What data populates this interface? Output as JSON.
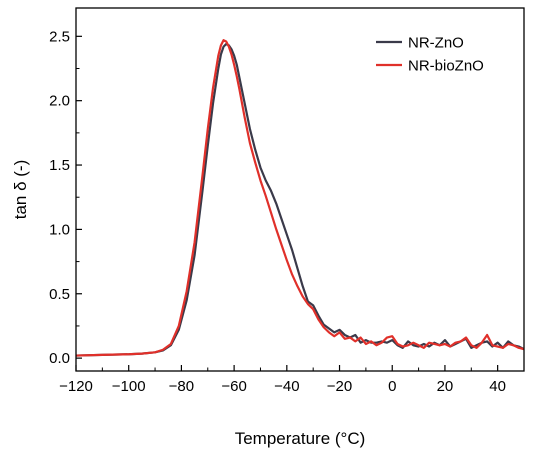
{
  "chart_data": {
    "type": "line",
    "title": "",
    "xlabel": "Temperature (°C)",
    "ylabel": "tan δ (-)",
    "xlim": [
      -120,
      50
    ],
    "ylim": [
      -0.1,
      2.72
    ],
    "xticks": [
      -120,
      -100,
      -80,
      -60,
      -40,
      -20,
      0,
      20,
      40
    ],
    "xtick_labels": [
      "−120",
      "−100",
      "−80",
      "−60",
      "−40",
      "−20",
      "0",
      "20",
      "40"
    ],
    "yticks": [
      0.0,
      0.5,
      1.0,
      1.5,
      2.0,
      2.5
    ],
    "ytick_labels": [
      "0.0",
      "0.5",
      "1.0",
      "1.5",
      "2.0",
      "2.5"
    ],
    "grid": false,
    "legend_position": "top-right",
    "series": [
      {
        "name": "NR-ZnO",
        "color": "#3a3a4a",
        "x": [
          -120,
          -110,
          -100,
          -95,
          -90,
          -87,
          -84,
          -81,
          -78,
          -75,
          -72,
          -70,
          -68,
          -66,
          -65,
          -64,
          -63,
          -62,
          -61,
          -60,
          -59,
          -58,
          -57,
          -56,
          -55,
          -54,
          -52,
          -50,
          -48,
          -46,
          -44,
          -42,
          -40,
          -38,
          -36,
          -34,
          -32,
          -30,
          -28,
          -26,
          -24,
          -22,
          -20,
          -18,
          -16,
          -14,
          -12,
          -10,
          -8,
          -6,
          -4,
          -2,
          0,
          2,
          4,
          6,
          8,
          10,
          12,
          14,
          16,
          18,
          20,
          22,
          24,
          26,
          28,
          30,
          32,
          34,
          36,
          38,
          40,
          42,
          44,
          46,
          48,
          50
        ],
        "y": [
          0.02,
          0.025,
          0.03,
          0.035,
          0.045,
          0.06,
          0.1,
          0.22,
          0.45,
          0.8,
          1.3,
          1.65,
          1.98,
          2.25,
          2.36,
          2.42,
          2.44,
          2.43,
          2.4,
          2.35,
          2.28,
          2.18,
          2.08,
          1.98,
          1.88,
          1.78,
          1.62,
          1.48,
          1.38,
          1.3,
          1.2,
          1.08,
          0.96,
          0.84,
          0.7,
          0.56,
          0.44,
          0.41,
          0.33,
          0.26,
          0.23,
          0.2,
          0.22,
          0.18,
          0.16,
          0.18,
          0.12,
          0.14,
          0.12,
          0.12,
          0.13,
          0.12,
          0.14,
          0.1,
          0.08,
          0.13,
          0.1,
          0.09,
          0.11,
          0.09,
          0.12,
          0.1,
          0.14,
          0.09,
          0.11,
          0.13,
          0.15,
          0.08,
          0.1,
          0.12,
          0.13,
          0.09,
          0.12,
          0.08,
          0.13,
          0.1,
          0.09,
          0.07
        ]
      },
      {
        "name": "NR-bioZnO",
        "color": "#e0302a",
        "x": [
          -120,
          -110,
          -100,
          -95,
          -90,
          -87,
          -84,
          -81,
          -78,
          -75,
          -72,
          -70,
          -68,
          -66,
          -65,
          -64,
          -63,
          -62,
          -61,
          -60,
          -59,
          -58,
          -57,
          -56,
          -55,
          -54,
          -52,
          -50,
          -48,
          -46,
          -44,
          -42,
          -40,
          -38,
          -36,
          -34,
          -32,
          -30,
          -28,
          -26,
          -24,
          -22,
          -20,
          -18,
          -16,
          -14,
          -12,
          -10,
          -8,
          -6,
          -4,
          -2,
          0,
          2,
          4,
          6,
          8,
          10,
          12,
          14,
          16,
          18,
          20,
          22,
          24,
          26,
          28,
          30,
          32,
          34,
          36,
          38,
          40,
          42,
          44,
          46,
          48,
          50
        ],
        "y": [
          0.02,
          0.025,
          0.03,
          0.035,
          0.045,
          0.065,
          0.11,
          0.25,
          0.52,
          0.9,
          1.42,
          1.78,
          2.1,
          2.35,
          2.43,
          2.47,
          2.46,
          2.42,
          2.36,
          2.28,
          2.19,
          2.09,
          1.98,
          1.87,
          1.77,
          1.67,
          1.52,
          1.38,
          1.26,
          1.13,
          1.0,
          0.88,
          0.76,
          0.65,
          0.56,
          0.48,
          0.42,
          0.38,
          0.3,
          0.24,
          0.2,
          0.17,
          0.2,
          0.15,
          0.16,
          0.13,
          0.16,
          0.11,
          0.13,
          0.1,
          0.12,
          0.16,
          0.17,
          0.11,
          0.09,
          0.1,
          0.12,
          0.1,
          0.08,
          0.12,
          0.11,
          0.1,
          0.11,
          0.09,
          0.12,
          0.13,
          0.16,
          0.1,
          0.08,
          0.12,
          0.18,
          0.1,
          0.09,
          0.08,
          0.11,
          0.1,
          0.08,
          0.07
        ]
      }
    ]
  }
}
